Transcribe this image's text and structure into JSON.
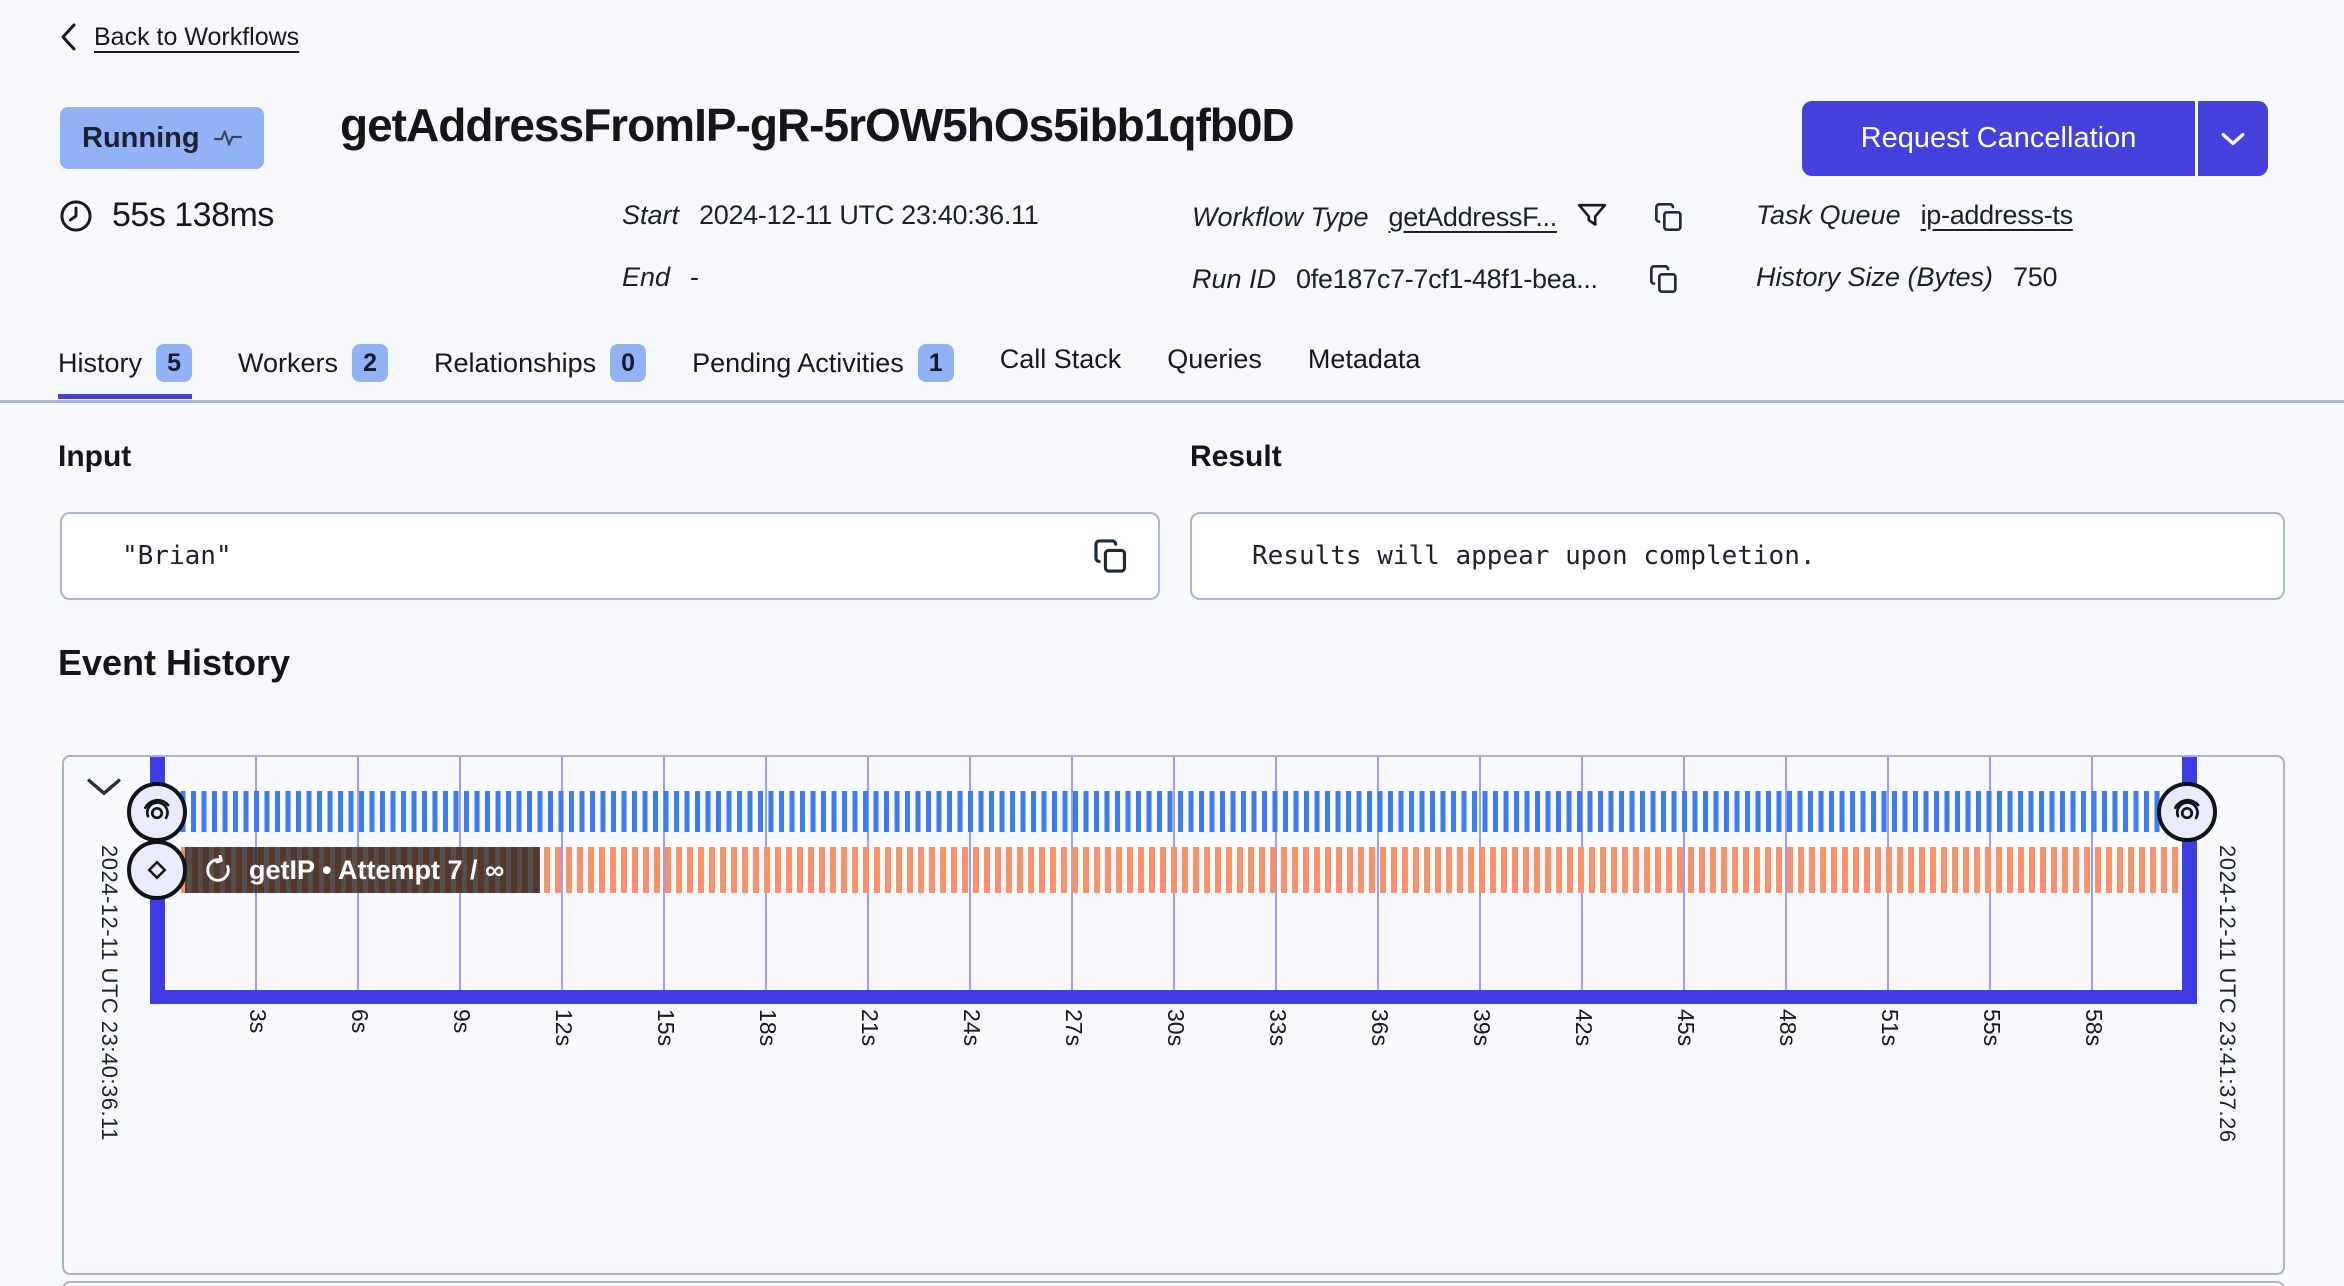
{
  "header": {
    "back_label": "Back to Workflows",
    "status": "Running",
    "title": "getAddressFromIP-gR-5rOW5hOs5ibb1qfb0D",
    "cancel_button": "Request Cancellation",
    "duration": "55s 138ms",
    "meta": {
      "start_label": "Start",
      "start_value": "2024-12-11 UTC 23:40:36.11",
      "end_label": "End",
      "end_value": "-",
      "workflow_type_label": "Workflow Type",
      "workflow_type_value": "getAddressF...",
      "run_id_label": "Run ID",
      "run_id_value": "0fe187c7-7cf1-48f1-bea...",
      "task_queue_label": "Task Queue",
      "task_queue_value": "ip-address-ts",
      "history_size_label": "History Size (Bytes)",
      "history_size_value": "750"
    }
  },
  "tabs": [
    {
      "label": "History",
      "count": "5",
      "active": true
    },
    {
      "label": "Workers",
      "count": "2"
    },
    {
      "label": "Relationships",
      "count": "0"
    },
    {
      "label": "Pending Activities",
      "count": "1"
    },
    {
      "label": "Call Stack"
    },
    {
      "label": "Queries"
    },
    {
      "label": "Metadata"
    }
  ],
  "input_section": {
    "title": "Input",
    "value": "\"Brian\""
  },
  "result_section": {
    "title": "Result",
    "value": "Results will appear upon completion."
  },
  "event_history": {
    "title": "Event History",
    "start_time": "2024-12-11 UTC 23:40:36.11",
    "end_time": "2024-12-11 UTC 23:41:37.26",
    "activity_label": "getIP • Attempt 7 / ∞",
    "ticks": [
      "3s",
      "6s",
      "9s",
      "12s",
      "15s",
      "18s",
      "21s",
      "24s",
      "27s",
      "30s",
      "33s",
      "36s",
      "39s",
      "42s",
      "45s",
      "48s",
      "51s",
      "55s",
      "58s"
    ],
    "timeline": {
      "type": "timeline",
      "rows": [
        {
          "name": "workflow-execution",
          "style": "blue-striped",
          "start_icon": "swirl",
          "end_icon": "swirl"
        },
        {
          "name": "activity-getIP",
          "style": "orange-striped",
          "start_icon": "diamond",
          "label": "getIP • Attempt 7 / ∞",
          "label_icon": "retry"
        }
      ]
    }
  },
  "icons": {
    "back": "chevron-left",
    "status_pulse": "heartbeat-line",
    "duration": "clock",
    "filter": "funnel",
    "copy": "copy-pages",
    "cancel_menu": "chevron-down",
    "collapse": "chevron-down",
    "workflow_marker": "swirl",
    "activity_marker": "diamond",
    "retry": "circular-arrow"
  },
  "colors": {
    "accent_indigo": "#4541dd",
    "timeline_frame": "#3d3de3",
    "workflow_bar_blue": "#3c7cef",
    "activity_bar_orange": "#f9916c",
    "badge_blue": "#92b2f6",
    "gridline": "#9b9fef",
    "card_border": "#a7b3d2",
    "page_bg": "#f6f8fb"
  }
}
